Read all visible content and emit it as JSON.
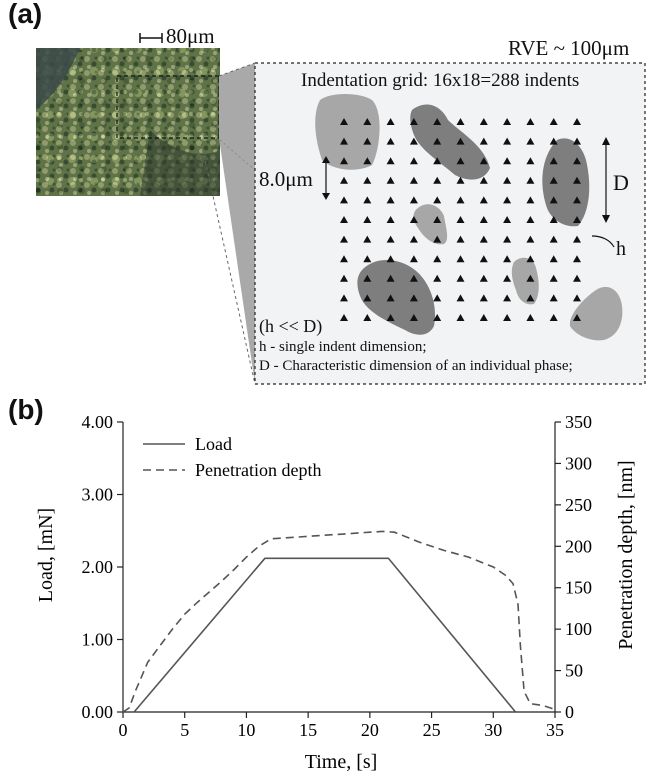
{
  "figure_a": {
    "label": "(a)",
    "scale_bar": "80μm",
    "rve_label": "RVE ~ 100μm",
    "grid_title": "Indentation grid: 16x18=288 indents",
    "spacing_label": "8.0μm",
    "d_label": "D",
    "h_label": "h",
    "relation": "(h << D)",
    "legend_h": "h - single indent dimension;",
    "legend_d": "D - Characteristic dimension of an individual phase;"
  },
  "figure_b": {
    "label": "(b)"
  },
  "chart_data": {
    "type": "line",
    "xlabel": "Time, [s]",
    "ylabel_left": "Load, [mN]",
    "ylabel_right": "Penetration depth, [nm]",
    "xlim": [
      0,
      35
    ],
    "ylim_left": [
      0,
      4
    ],
    "ylim_right": [
      0,
      350
    ],
    "x_ticks": [
      "0",
      "5",
      "10",
      "15",
      "20",
      "25",
      "30",
      "35"
    ],
    "y_left_ticks": [
      "0.00",
      "1.00",
      "2.00",
      "3.00",
      "4.00"
    ],
    "y_right_ticks": [
      "0",
      "50",
      "100",
      "150",
      "200",
      "250",
      "300",
      "350"
    ],
    "legend_position": "top-left",
    "series": [
      {
        "name": "Load",
        "axis": "left",
        "style": "solid",
        "x": [
          0.9,
          11.5,
          21.5,
          31.8
        ],
        "y": [
          0.0,
          2.12,
          2.12,
          0.0
        ]
      },
      {
        "name": "Penetration depth",
        "axis": "right",
        "style": "dashed",
        "x": [
          0,
          0.5,
          1,
          2,
          3,
          4,
          5,
          6,
          7,
          8,
          9,
          10,
          11,
          12,
          14,
          16,
          18,
          20,
          21,
          22,
          24,
          26,
          28,
          30,
          31,
          31.6,
          32,
          32.2,
          32.5,
          33,
          34,
          35
        ],
        "y": [
          0,
          5,
          25,
          60,
          80,
          100,
          118,
          132,
          145,
          158,
          172,
          187,
          200,
          209,
          211,
          213,
          215,
          217,
          218,
          217,
          205,
          195,
          187,
          175,
          165,
          155,
          130,
          80,
          25,
          10,
          8,
          3
        ]
      }
    ]
  }
}
